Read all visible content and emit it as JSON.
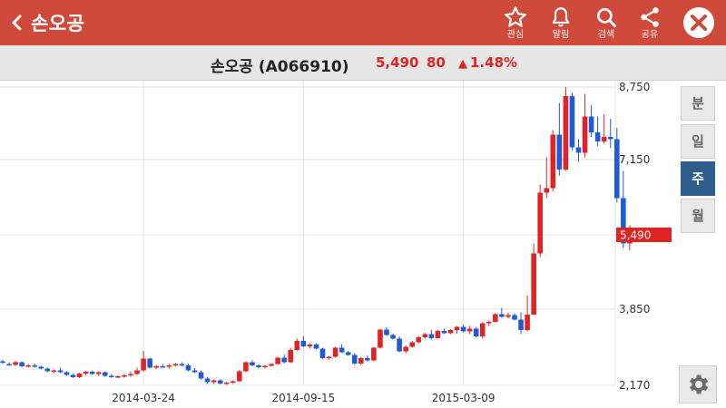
{
  "header": {
    "title": "손오공",
    "actions": [
      {
        "id": "favorite",
        "label": "관심",
        "icon": "star-icon"
      },
      {
        "id": "alarm",
        "label": "알림",
        "icon": "bell-icon"
      },
      {
        "id": "search",
        "label": "검색",
        "icon": "search-icon"
      },
      {
        "id": "share",
        "label": "공유",
        "icon": "share-icon"
      }
    ],
    "bg_color": "#cf4a3a"
  },
  "stock": {
    "name": "손오공 (A066910)",
    "price": "5,490",
    "change": "80",
    "change_pct": "1.48%",
    "up_color": "#e02424",
    "down_color": "#1f5ad8"
  },
  "periods": [
    {
      "label": "분",
      "active": false
    },
    {
      "label": "일",
      "active": false
    },
    {
      "label": "주",
      "active": true
    },
    {
      "label": "월",
      "active": false
    }
  ],
  "chart_data": {
    "type": "candlestick",
    "y_ticks": [
      2170,
      3850,
      5490,
      7150,
      8750
    ],
    "y_tick_labels": [
      "2,170",
      "3,850",
      "5,490",
      "7,150",
      "8,750"
    ],
    "ylim": [
      2170,
      8750
    ],
    "x_tick_labels": [
      "2014-03-24",
      "2014-09-15",
      "2015-03-09"
    ],
    "x_tick_index": [
      22,
      47,
      72
    ],
    "current_price": 5490,
    "current_price_label": "5,490",
    "grid": true,
    "candles": [
      [
        2700,
        2740,
        2640,
        2670
      ],
      [
        2640,
        2680,
        2600,
        2620
      ],
      [
        2620,
        2710,
        2600,
        2680
      ],
      [
        2680,
        2700,
        2570,
        2590
      ],
      [
        2590,
        2640,
        2560,
        2610
      ],
      [
        2610,
        2650,
        2560,
        2580
      ],
      [
        2580,
        2600,
        2520,
        2540
      ],
      [
        2540,
        2560,
        2460,
        2480
      ],
      [
        2480,
        2520,
        2440,
        2500
      ],
      [
        2500,
        2560,
        2440,
        2460
      ],
      [
        2460,
        2480,
        2380,
        2400
      ],
      [
        2400,
        2430,
        2330,
        2350
      ],
      [
        2350,
        2450,
        2330,
        2430
      ],
      [
        2430,
        2490,
        2400,
        2470
      ],
      [
        2470,
        2500,
        2400,
        2420
      ],
      [
        2420,
        2480,
        2380,
        2460
      ],
      [
        2460,
        2480,
        2360,
        2380
      ],
      [
        2380,
        2420,
        2330,
        2350
      ],
      [
        2350,
        2390,
        2330,
        2370
      ],
      [
        2370,
        2420,
        2340,
        2390
      ],
      [
        2390,
        2480,
        2360,
        2420
      ],
      [
        2420,
        2560,
        2400,
        2500
      ],
      [
        2500,
        2930,
        2470,
        2760
      ],
      [
        2760,
        2780,
        2540,
        2560
      ],
      [
        2560,
        2620,
        2530,
        2590
      ],
      [
        2590,
        2640,
        2560,
        2580
      ],
      [
        2580,
        2640,
        2540,
        2610
      ],
      [
        2610,
        2660,
        2580,
        2640
      ],
      [
        2640,
        2680,
        2590,
        2610
      ],
      [
        2610,
        2650,
        2480,
        2500
      ],
      [
        2500,
        2550,
        2440,
        2460
      ],
      [
        2460,
        2490,
        2300,
        2320
      ],
      [
        2320,
        2360,
        2210,
        2240
      ],
      [
        2240,
        2300,
        2200,
        2280
      ],
      [
        2280,
        2300,
        2190,
        2210
      ],
      [
        2210,
        2250,
        2180,
        2230
      ],
      [
        2230,
        2280,
        2200,
        2260
      ],
      [
        2260,
        2510,
        2250,
        2480
      ],
      [
        2480,
        2700,
        2460,
        2680
      ],
      [
        2680,
        2720,
        2590,
        2610
      ],
      [
        2610,
        2640,
        2540,
        2570
      ],
      [
        2570,
        2620,
        2540,
        2600
      ],
      [
        2600,
        2660,
        2580,
        2640
      ],
      [
        2640,
        2800,
        2620,
        2780
      ],
      [
        2780,
        2850,
        2650,
        2680
      ],
      [
        2680,
        3000,
        2660,
        2950
      ],
      [
        2950,
        3200,
        2930,
        3150
      ],
      [
        3150,
        3250,
        3010,
        3030
      ],
      [
        3030,
        3100,
        2980,
        3070
      ],
      [
        3070,
        3100,
        2960,
        2980
      ],
      [
        2980,
        3000,
        2750,
        2770
      ],
      [
        2770,
        2820,
        2740,
        2800
      ],
      [
        2800,
        3020,
        2780,
        3000
      ],
      [
        3000,
        3080,
        2880,
        2900
      ],
      [
        2900,
        2930,
        2820,
        2840
      ],
      [
        2840,
        2880,
        2620,
        2650
      ],
      [
        2650,
        2800,
        2620,
        2770
      ],
      [
        2770,
        2830,
        2700,
        2720
      ],
      [
        2720,
        3020,
        2700,
        3000
      ],
      [
        3000,
        3420,
        2980,
        3400
      ],
      [
        3400,
        3450,
        3260,
        3280
      ],
      [
        3280,
        3310,
        3180,
        3200
      ],
      [
        3200,
        3250,
        2900,
        2920
      ],
      [
        2920,
        3050,
        2880,
        3020
      ],
      [
        3020,
        3150,
        3000,
        3120
      ],
      [
        3120,
        3260,
        3100,
        3230
      ],
      [
        3230,
        3330,
        3200,
        3300
      ],
      [
        3300,
        3400,
        3180,
        3210
      ],
      [
        3210,
        3390,
        3200,
        3370
      ],
      [
        3370,
        3420,
        3300,
        3320
      ],
      [
        3320,
        3410,
        3300,
        3390
      ],
      [
        3390,
        3480,
        3310,
        3460
      ],
      [
        3460,
        3500,
        3340,
        3360
      ],
      [
        3360,
        3480,
        3300,
        3420
      ],
      [
        3420,
        3460,
        3230,
        3250
      ],
      [
        3250,
        3560,
        3200,
        3540
      ],
      [
        3540,
        3600,
        3480,
        3570
      ],
      [
        3570,
        3760,
        3550,
        3740
      ],
      [
        3740,
        3880,
        3660,
        3680
      ],
      [
        3680,
        3770,
        3650,
        3720
      ],
      [
        3720,
        3760,
        3600,
        3620
      ],
      [
        3620,
        3780,
        3300,
        3390
      ],
      [
        3390,
        4150,
        3360,
        3730
      ],
      [
        3730,
        5300,
        3720,
        5080
      ],
      [
        5080,
        6600,
        5000,
        6420
      ],
      [
        6420,
        7200,
        6300,
        6520
      ],
      [
        6520,
        7800,
        6450,
        7700
      ],
      [
        7700,
        8400,
        6800,
        6930
      ],
      [
        6930,
        8750,
        6900,
        8550
      ],
      [
        8550,
        8620,
        7350,
        7420
      ],
      [
        7420,
        7600,
        7100,
        7300
      ],
      [
        7300,
        8600,
        7200,
        8100
      ],
      [
        8100,
        8350,
        7650,
        7750
      ],
      [
        7750,
        8100,
        7450,
        7550
      ],
      [
        7550,
        8150,
        7500,
        7650
      ],
      [
        7650,
        8050,
        7400,
        7600
      ],
      [
        7600,
        7850,
        6200,
        6300
      ],
      [
        6300,
        6900,
        5200,
        5300
      ],
      [
        5300,
        5700,
        5150,
        5490
      ]
    ]
  },
  "settings_icon": "gear-icon"
}
